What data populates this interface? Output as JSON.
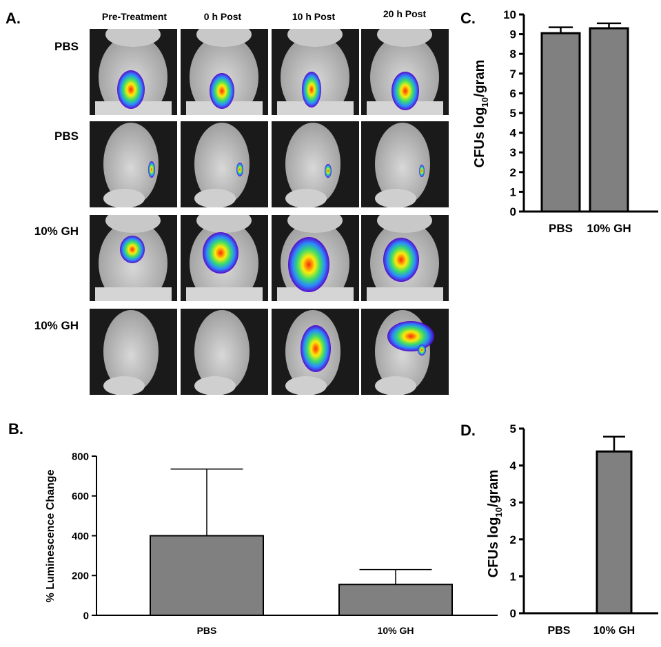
{
  "panel_labels": {
    "a": "A.",
    "b": "B.",
    "c": "C.",
    "d": "D."
  },
  "image_grid": {
    "columns": [
      "Pre-Treatment",
      "0 h Post",
      "10 h Post",
      "20 h Post"
    ],
    "rows": [
      "PBS",
      "PBS",
      "10% GH",
      "10% GH"
    ]
  },
  "chart_data": [
    {
      "id": "C",
      "type": "bar",
      "categories": [
        "PBS",
        "10% GH"
      ],
      "values": [
        9.05,
        9.3
      ],
      "error": [
        0.3,
        0.25
      ],
      "ylabel": "CFUs log",
      "ylabel_sub": "10",
      "ylabel_suffix": "/gram",
      "ylim": [
        0,
        10
      ],
      "yticks": [
        "0",
        "1",
        "2",
        "3",
        "4",
        "5",
        "6",
        "7",
        "8",
        "9",
        "10"
      ],
      "bar_color": "#808080"
    },
    {
      "id": "B",
      "type": "bar",
      "categories": [
        "PBS",
        "10% GH"
      ],
      "values": [
        400,
        155
      ],
      "error": [
        335,
        75
      ],
      "ylabel": "% Luminescence Change",
      "ylim": [
        0,
        800
      ],
      "yticks": [
        "0",
        "200",
        "400",
        "600",
        "800"
      ],
      "bar_color": "#808080"
    },
    {
      "id": "D",
      "type": "bar",
      "categories": [
        "PBS",
        "10% GH"
      ],
      "values": [
        0,
        4.38
      ],
      "error": [
        0,
        0.4
      ],
      "ylabel": "CFUs log",
      "ylabel_sub": "10",
      "ylabel_suffix": "/gram",
      "ylim": [
        0,
        5
      ],
      "yticks": [
        "0",
        "1",
        "2",
        "3",
        "4",
        "5"
      ],
      "bar_color": "#808080"
    }
  ]
}
